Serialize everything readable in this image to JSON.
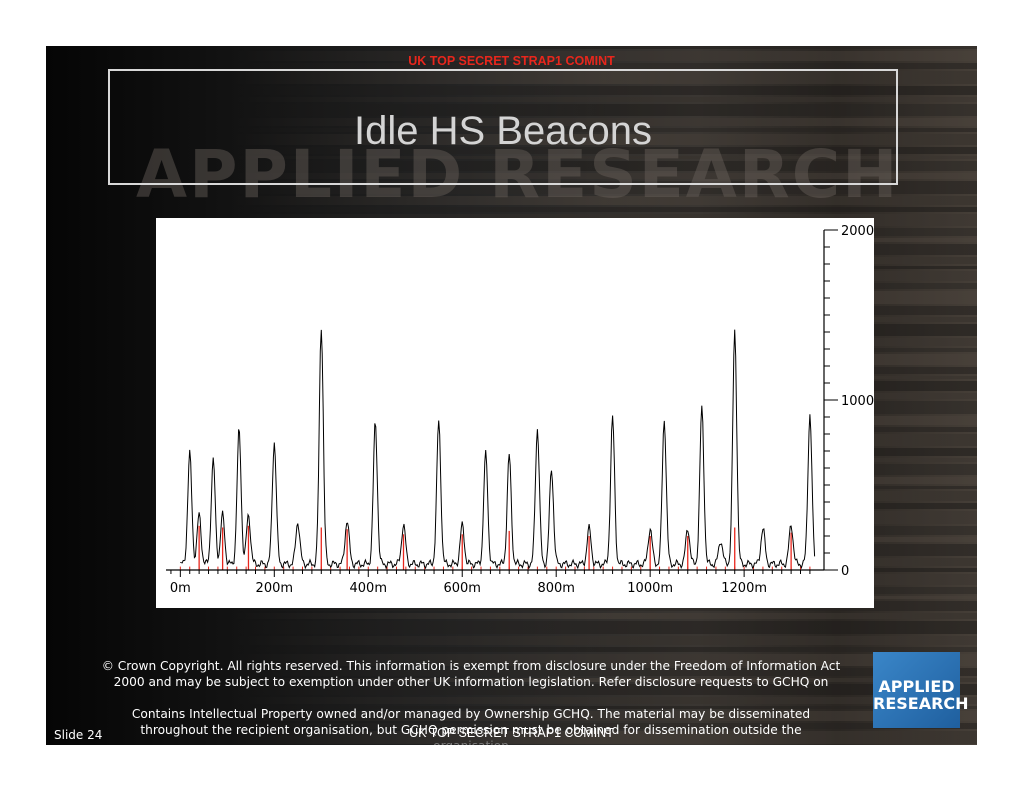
{
  "classification_top": "UK TOP SECRET STRAP1 COMINT",
  "watermark_text": "APPLIED RESEARCH",
  "title": "Idle HS Beacons",
  "chart_data": {
    "type": "line",
    "title": "",
    "xlabel": "",
    "ylabel": "",
    "x_ticks": [
      "0m",
      "200m",
      "400m",
      "600m",
      "800m",
      "1000m",
      "1200m"
    ],
    "x_tick_values": [
      0,
      200,
      400,
      600,
      800,
      1000,
      1200
    ],
    "y_ticks": [
      "0",
      "1000",
      "2000"
    ],
    "y_tick_values": [
      0,
      1000,
      2000
    ],
    "xlim": [
      -22,
      1370
    ],
    "ylim": [
      0,
      2000
    ],
    "y_axis_position": "right",
    "grid": false,
    "series": [
      {
        "color": "#000000",
        "baseline": 35,
        "peaks": [
          [
            20,
            650
          ],
          [
            40,
            290
          ],
          [
            70,
            610
          ],
          [
            90,
            290
          ],
          [
            125,
            790
          ],
          [
            145,
            290
          ],
          [
            200,
            720
          ],
          [
            250,
            250
          ],
          [
            300,
            1400
          ],
          [
            355,
            260
          ],
          [
            415,
            830
          ],
          [
            475,
            230
          ],
          [
            550,
            840
          ],
          [
            600,
            230
          ],
          [
            650,
            650
          ],
          [
            700,
            640
          ],
          [
            760,
            800
          ],
          [
            790,
            560
          ],
          [
            870,
            210
          ],
          [
            920,
            860
          ],
          [
            1000,
            210
          ],
          [
            1030,
            850
          ],
          [
            1080,
            210
          ],
          [
            1110,
            920
          ],
          [
            1150,
            140
          ],
          [
            1180,
            1370
          ],
          [
            1240,
            210
          ],
          [
            1300,
            230
          ],
          [
            1340,
            880
          ]
        ]
      },
      {
        "color": "#e8261c",
        "baseline": 0,
        "ticks_interval": 20,
        "tick_height": 20,
        "spikes": [
          [
            40,
            260
          ],
          [
            90,
            250
          ],
          [
            145,
            260
          ],
          [
            300,
            250
          ],
          [
            355,
            240
          ],
          [
            475,
            210
          ],
          [
            600,
            210
          ],
          [
            700,
            230
          ],
          [
            870,
            200
          ],
          [
            1000,
            200
          ],
          [
            1080,
            200
          ],
          [
            1180,
            250
          ],
          [
            1300,
            220
          ]
        ]
      }
    ]
  },
  "copyright": {
    "line1": "© Crown Copyright. All rights reserved. This information is exempt from disclosure under the Freedom of Information Act",
    "line2": "2000 and may be subject to exemption under other UK information legislation. Refer disclosure requests to GCHQ on",
    "line3": "Contains Intellectual Property owned and/or managed by Ownership GCHQ. The material may be disseminated",
    "line4": "throughout the recipient organisation, but GCHQ permission must be obtained for dissemination outside the",
    "line5": "organisation"
  },
  "classification_bottom": "UK TOP SECRET STRAP1 COMINT",
  "slide_number": "Slide 24",
  "logo": {
    "text": "APPLIED\nRESEARCH",
    "color": "#2f7bbf"
  }
}
